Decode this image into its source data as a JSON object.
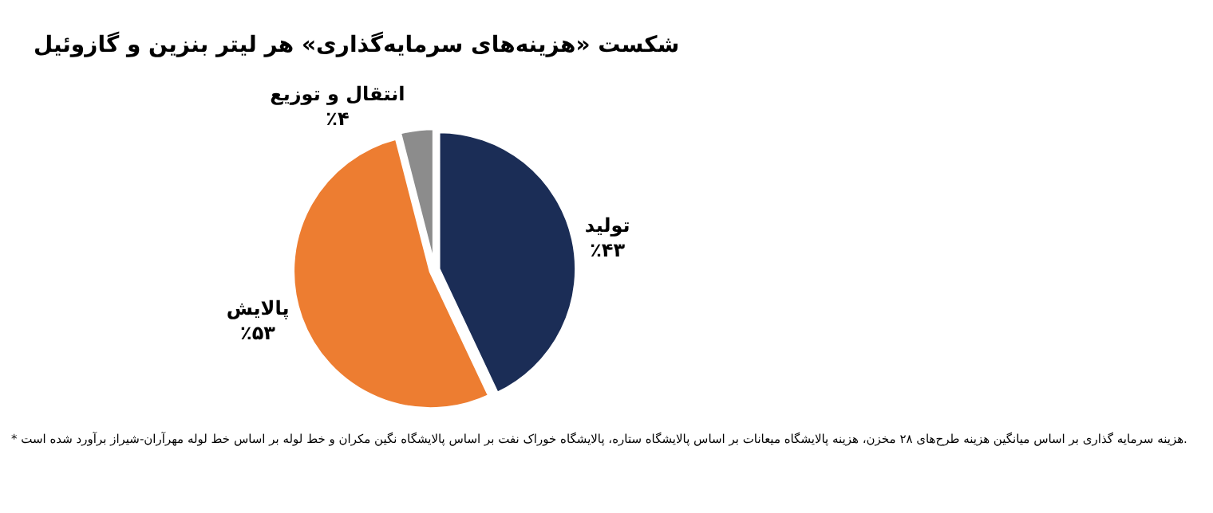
{
  "chart_data": {
    "type": "pie",
    "title": "شکست «هزینه‌های سرمایه‌گذاری» هر لیتر بنزین و گازوئیل",
    "categories": [
      "تولید",
      "پالایش",
      "انتقال و توزیع"
    ],
    "values": [
      43,
      53,
      4
    ],
    "value_labels": [
      "٪۴۳",
      "٪۵۳",
      "٪۴"
    ],
    "colors": [
      "#1b2d56",
      "#ed7d31",
      "#8c8c8c"
    ],
    "legend": false,
    "annotations": [
      "* هزینه سرمایه گذاری بر اساس میانگین هزینه طرح‌های ۲۸ مخزن، هزینه پالایشگاه میعانات بر اساس پالایشگاه ستاره، پالایشگاه خوراک نفت بر اساس پالایشگاه نگین مکران و خط لوله بر اساس خط لوله مهرآران-شیراز برآورد شده است."
    ]
  }
}
